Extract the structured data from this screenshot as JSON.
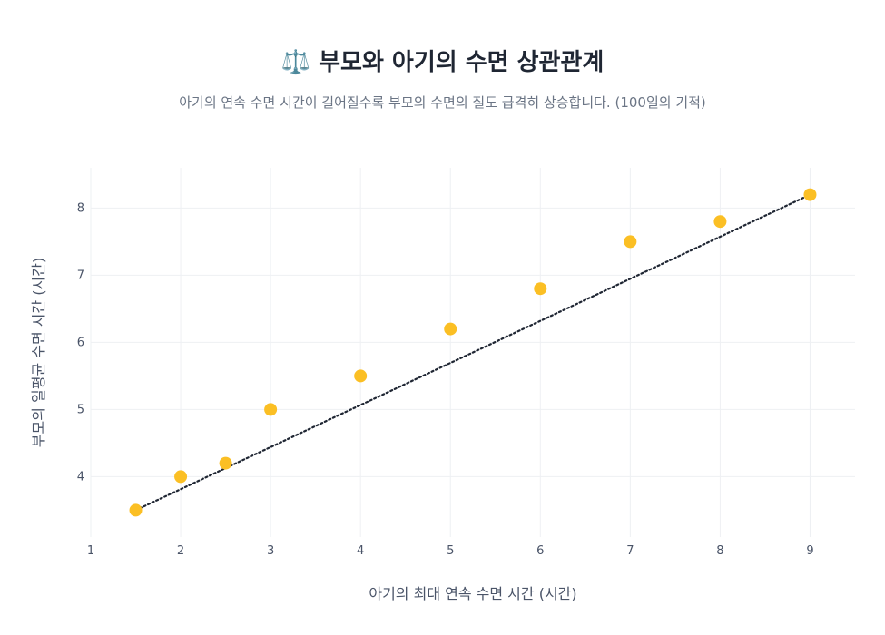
{
  "title": "⚖️ 부모와 아기의 수면 상관관계",
  "subtitle": "아기의 연속 수면 시간이 길어질수록 부모의 수면의 질도 급격히 상승합니다. (100일의 기적)",
  "chart_data": {
    "type": "scatter",
    "title": "⚖️ 부모와 아기의 수면 상관관계",
    "subtitle": "아기의 연속 수면 시간이 길어질수록 부모의 수면의 질도 급격히 상승합니다. (100일의 기적)",
    "xlabel": "아기의 최대 연속 수면 시간 (시간)",
    "ylabel": "부모의 일평균 수면 시간 (시간)",
    "xlim": [
      1,
      9.5
    ],
    "ylim": [
      3.1,
      8.6
    ],
    "xticks": [
      1,
      2,
      3,
      4,
      5,
      6,
      7,
      8,
      9
    ],
    "yticks": [
      4,
      5,
      6,
      7,
      8
    ],
    "grid": true,
    "legend": "none",
    "marker_color": "#FBBF24",
    "trendline_color": "#1f2633",
    "x": [
      1.5,
      2,
      2.5,
      3,
      4,
      5,
      6,
      7,
      8,
      9
    ],
    "y": [
      3.5,
      4.0,
      4.2,
      5.0,
      5.5,
      6.2,
      6.8,
      7.5,
      7.8,
      8.2
    ],
    "trendline": {
      "x": [
        1.5,
        9
      ],
      "y": [
        3.5,
        8.2
      ],
      "style": "dotted"
    }
  }
}
